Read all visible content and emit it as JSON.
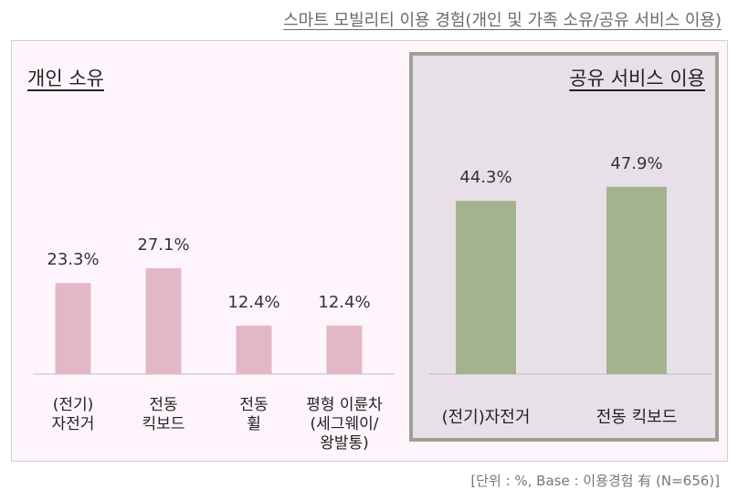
{
  "header": {
    "title": "스마트 모빌리티 이용 경험(개인 및 가족 소유/공유 서비스 이용)"
  },
  "footnote": "[단위 : %, Base : 이용경험 有 (N=656)]",
  "chart_data": [
    {
      "type": "bar",
      "title": "개인 소유",
      "categories": [
        "(전기)\n자전거",
        "전동\n킥보드",
        "전동\n휠",
        "평형 이륜차\n(세그웨이/\n왕발통)"
      ],
      "values": [
        23.3,
        27.1,
        12.4,
        12.4
      ],
      "value_labels": [
        "23.3%",
        "27.1%",
        "12.4%",
        "12.4%"
      ],
      "unit": "%",
      "color": "#e3b8c6",
      "ylim": [
        0,
        60
      ]
    },
    {
      "type": "bar",
      "title": "공유 서비스 이용",
      "categories": [
        "(전기)자전거",
        "전동 킥보드"
      ],
      "values": [
        44.3,
        47.9
      ],
      "value_labels": [
        "44.3%",
        "47.9%"
      ],
      "unit": "%",
      "color": "#a3b38e",
      "ylim": [
        0,
        60
      ]
    }
  ]
}
